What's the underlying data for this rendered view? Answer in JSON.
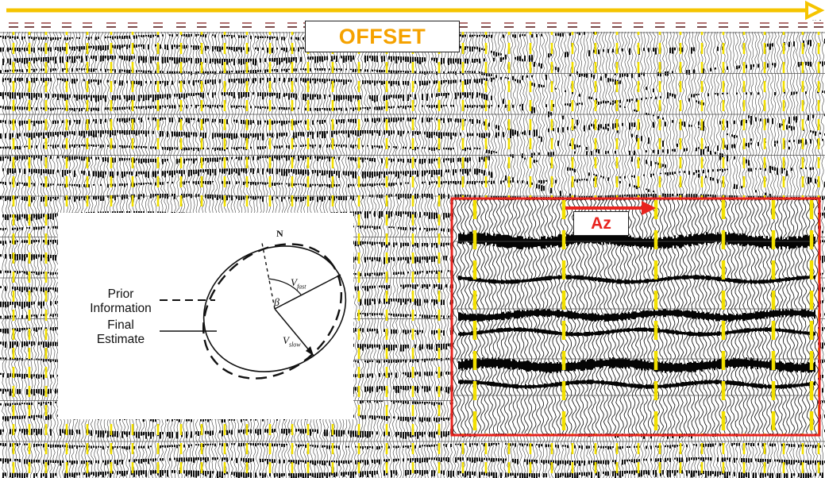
{
  "offset": {
    "label": "OFFSET",
    "color": "#f5a200"
  },
  "azimuth": {
    "label": "Az",
    "color": "#e8231e"
  },
  "legend": {
    "north_label": "N",
    "prior_label_line1": "Prior",
    "prior_label_line2": "Information",
    "final_label_line1": "Final",
    "final_label_line2": "Estimate",
    "beta_label": "β",
    "v_fast_main": "V",
    "v_fast_sub": "fast",
    "v_slow_main": "V",
    "v_slow_sub": "slow"
  },
  "colors": {
    "trace_marker": "#f2e000",
    "highlight_box": "#e8231e",
    "wiggle": "#000000"
  }
}
